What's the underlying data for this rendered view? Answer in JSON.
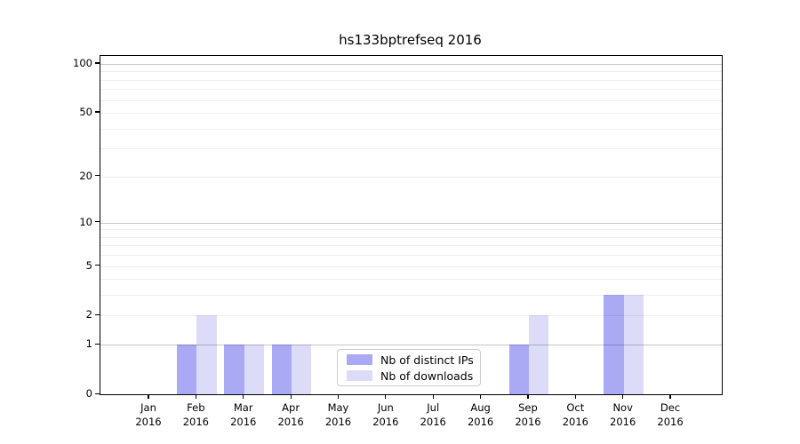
{
  "figure": {
    "title": "hs133bptrefseq 2016"
  },
  "colors": {
    "ips_bar": "#a9a9f4",
    "downloads_bar": "#dcdcf9",
    "grid_major": "rgba(0,0,0,0.22)",
    "grid_minor": "rgba(0,0,0,0.07)",
    "spine": "#000000",
    "legend_border": "#cccccc"
  },
  "chart_data": {
    "type": "bar",
    "title": "hs133bptrefseq 2016",
    "categories": [
      "Jan",
      "Feb",
      "Mar",
      "Apr",
      "May",
      "Jun",
      "Jul",
      "Aug",
      "Sep",
      "Oct",
      "Nov",
      "Dec"
    ],
    "x_year": "2016",
    "series": [
      {
        "name": "Nb of distinct IPs",
        "id": "distinct-ips",
        "color": "#a9a9f4",
        "values": [
          0,
          1,
          1,
          1,
          0,
          0,
          0,
          0,
          1,
          0,
          3,
          0
        ]
      },
      {
        "name": "Nb of downloads",
        "id": "downloads",
        "color": "#dcdcf9",
        "values": [
          0,
          2,
          1,
          1,
          0,
          0,
          0,
          0,
          2,
          0,
          3,
          0
        ]
      }
    ],
    "xlabel": "",
    "ylabel": "",
    "ylim": [
      0,
      100
    ],
    "yscale": "log1p",
    "ytick_values": [
      0,
      1,
      2,
      5,
      10,
      20,
      50,
      100
    ],
    "ytick_labels": [
      "0",
      "1",
      "2",
      "5",
      "10",
      "20",
      "50",
      "100"
    ],
    "major_grid_values": [
      1,
      10,
      100
    ],
    "minor_grid_values": [
      2,
      3,
      4,
      5,
      6,
      7,
      8,
      9,
      20,
      30,
      40,
      50,
      60,
      70,
      80,
      90
    ],
    "grid": true,
    "legend_position": "lower center"
  }
}
